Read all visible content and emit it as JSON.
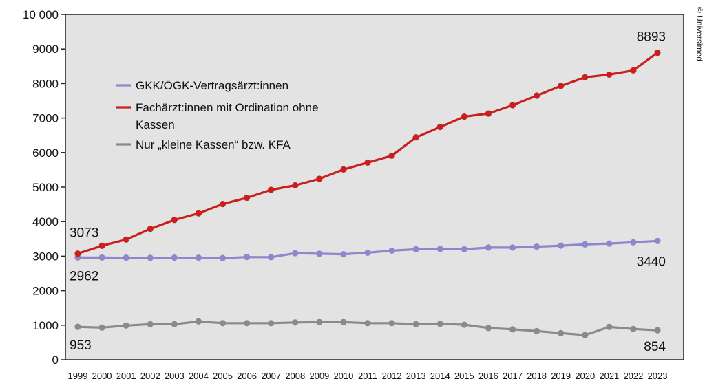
{
  "chart_data": {
    "type": "line",
    "title": "",
    "xlabel": "",
    "ylabel": "",
    "ylim": [
      0,
      10000
    ],
    "y_ticks": [
      {
        "value": 0,
        "label": "0"
      },
      {
        "value": 1000,
        "label": "1000"
      },
      {
        "value": 2000,
        "label": "2000"
      },
      {
        "value": 3000,
        "label": "3000"
      },
      {
        "value": 4000,
        "label": "4000"
      },
      {
        "value": 5000,
        "label": "5000"
      },
      {
        "value": 6000,
        "label": "6000"
      },
      {
        "value": 7000,
        "label": "7000"
      },
      {
        "value": 8000,
        "label": "8000"
      },
      {
        "value": 9000,
        "label": "9000"
      },
      {
        "value": 10000,
        "label": "10 000"
      }
    ],
    "x": [
      "1999",
      "2000",
      "2001",
      "2002",
      "2003",
      "2004",
      "2005",
      "2006",
      "2007",
      "2008",
      "2009",
      "2010",
      "2011",
      "2012",
      "2013",
      "2014",
      "2015",
      "2016",
      "2017",
      "2018",
      "2019",
      "2020",
      "2021",
      "2022",
      "2023"
    ],
    "grid": false,
    "legend_position": "top-left",
    "series": [
      {
        "name": "GKK/ÖGK-Vertragsärzt:innen",
        "color": "#8c88cc",
        "values": [
          2962,
          2960,
          2955,
          2950,
          2955,
          2955,
          2945,
          2975,
          2970,
          3085,
          3070,
          3055,
          3100,
          3160,
          3200,
          3210,
          3200,
          3250,
          3250,
          3275,
          3305,
          3340,
          3365,
          3400,
          3440
        ]
      },
      {
        "name": "Fachärzt:innen mit Ordination ohne Kassen",
        "color": "#c8201e",
        "values": [
          3073,
          3300,
          3480,
          3790,
          4050,
          4240,
          4510,
          4690,
          4920,
          5050,
          5240,
          5510,
          5710,
          5910,
          6440,
          6740,
          7040,
          7130,
          7370,
          7650,
          7930,
          8180,
          8260,
          8380,
          8893
        ]
      },
      {
        "name": "Nur „kleine Kassen“ bzw. KFA",
        "color": "#8a8a8a",
        "values": [
          953,
          930,
          990,
          1030,
          1030,
          1110,
          1060,
          1060,
          1060,
          1080,
          1090,
          1090,
          1060,
          1060,
          1030,
          1040,
          1015,
          920,
          880,
          830,
          770,
          715,
          950,
          890,
          854
        ]
      }
    ],
    "annotations": [
      {
        "series": 1,
        "index": 0,
        "label": "3073"
      },
      {
        "series": 0,
        "index": 0,
        "label": "2962"
      },
      {
        "series": 2,
        "index": 0,
        "label": "953"
      },
      {
        "series": 1,
        "index": 24,
        "label": "8893"
      },
      {
        "series": 0,
        "index": 24,
        "label": "3440"
      },
      {
        "series": 2,
        "index": 24,
        "label": "854"
      }
    ],
    "credit": "© Universimed",
    "colors": {
      "plot_background": "#e3e3e3",
      "axis": "#222222"
    }
  }
}
